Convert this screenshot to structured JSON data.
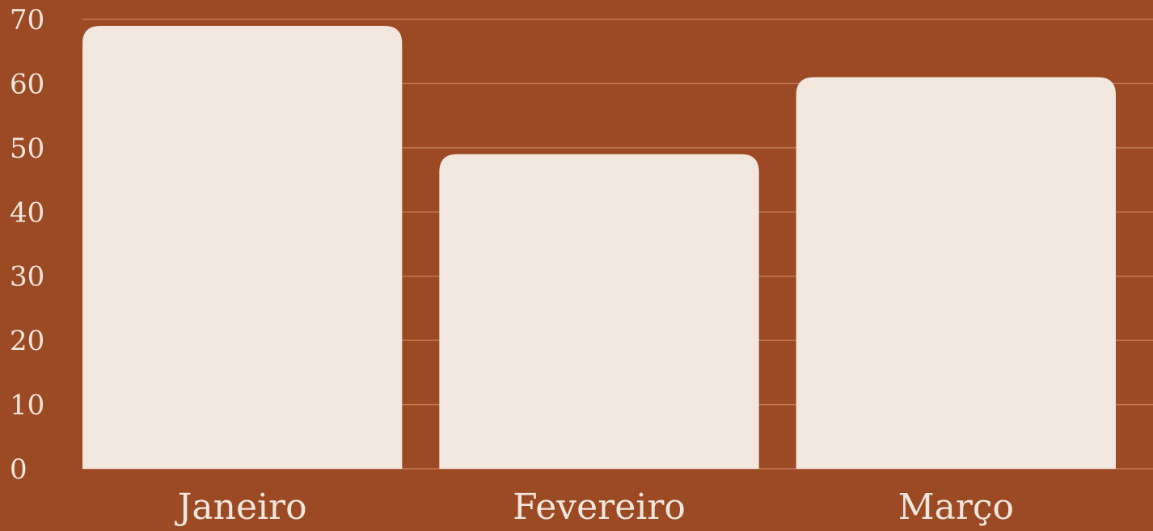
{
  "colors": {
    "background": "#9b4a24",
    "bar": "#f1e7de",
    "grid": "#c07a55",
    "text": "#f1e7de"
  },
  "chart_data": {
    "type": "bar",
    "categories": [
      "Janeiro",
      "Fevereiro",
      "Março"
    ],
    "values": [
      69,
      49,
      61
    ],
    "ylim": [
      0,
      70
    ],
    "yticks": [
      0,
      10,
      20,
      30,
      40,
      50,
      60,
      70
    ],
    "grid": true,
    "title": "",
    "xlabel": "",
    "ylabel": ""
  }
}
